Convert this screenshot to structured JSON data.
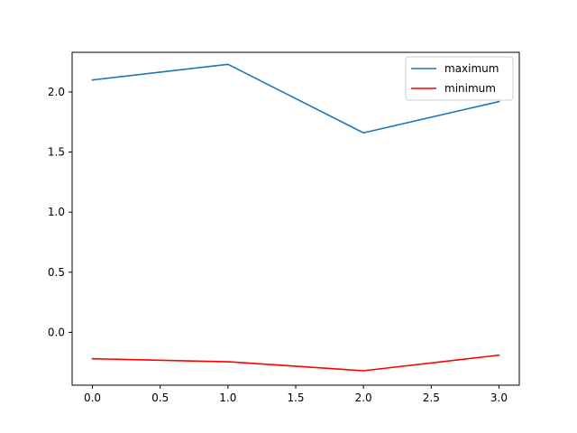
{
  "chart_data": {
    "type": "line",
    "title": "",
    "xlabel": "",
    "ylabel": "",
    "xlim": [
      -0.15,
      3.15
    ],
    "ylim": [
      -0.44,
      2.33
    ],
    "xticks": [
      0.0,
      0.5,
      1.0,
      1.5,
      2.0,
      2.5,
      3.0
    ],
    "xtick_labels": [
      "0.0",
      "0.5",
      "1.0",
      "1.5",
      "2.0",
      "2.5",
      "3.0"
    ],
    "yticks": [
      0.0,
      0.5,
      1.0,
      1.5,
      2.0
    ],
    "ytick_labels": [
      "0.0",
      "0.5",
      "1.0",
      "1.5",
      "2.0"
    ],
    "grid": false,
    "legend_position": "top-right",
    "x": [
      0,
      1,
      2,
      3
    ],
    "series": [
      {
        "name": "maximum",
        "color": "#1f77b4",
        "values": [
          2.1,
          2.23,
          1.66,
          1.92
        ]
      },
      {
        "name": "minimum",
        "color": "#ff0000",
        "values": [
          -0.22,
          -0.245,
          -0.32,
          -0.19
        ]
      }
    ]
  }
}
